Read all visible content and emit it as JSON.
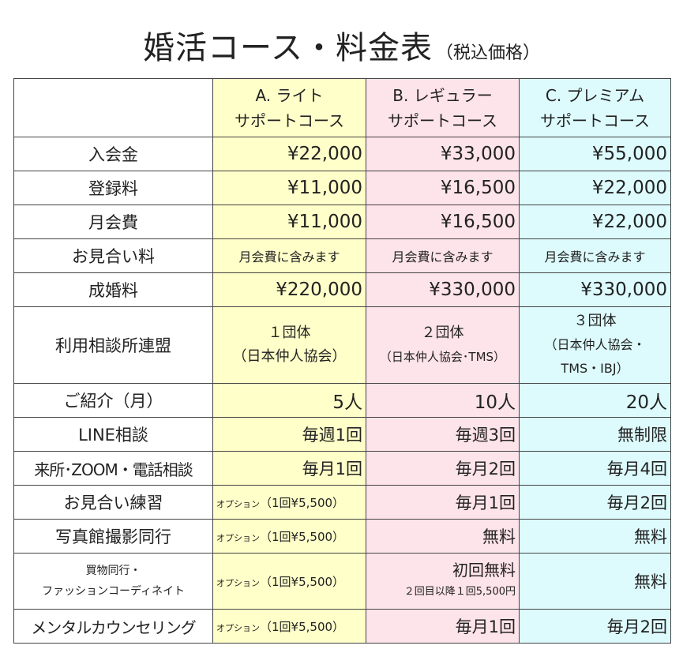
{
  "title": {
    "main": "婚活コース・料金表",
    "sub": "（税込価格）"
  },
  "courses": [
    {
      "line1": "A. ライト",
      "line2": "サポートコース"
    },
    {
      "line1": "B. レギュラー",
      "line2": "サポートコース"
    },
    {
      "line1": "C. プレミアム",
      "line2": "サポートコース"
    }
  ],
  "rows": {
    "admission": {
      "label": "入会金",
      "values": [
        "¥22,000",
        "¥33,000",
        "¥55,000"
      ]
    },
    "registration": {
      "label": "登録料",
      "values": [
        "¥11,000",
        "¥16,500",
        "¥22,000"
      ]
    },
    "monthly": {
      "label": "月会費",
      "values": [
        "¥11,000",
        "¥16,500",
        "¥22,000"
      ]
    },
    "meeting_fee": {
      "label": "お見合い料",
      "values": [
        "月会費に含みます",
        "月会費に含みます",
        "月会費に含みます"
      ]
    },
    "marriage_fee": {
      "label": "成婚料",
      "values": [
        "¥220,000",
        "¥330,000",
        "¥330,000"
      ]
    },
    "federation": {
      "label": "利用相談所連盟",
      "a": {
        "line1": "１団体",
        "line2": "（日本仲人協会）"
      },
      "b": {
        "line1": "２団体",
        "line2": "（日本仲人協会･TMS）"
      },
      "c": {
        "line1": "３団体",
        "line2": "（日本仲人協会・",
        "line3": "TMS・IBJ）"
      }
    },
    "introductions": {
      "label": "ご紹介（月）",
      "values": [
        "5人",
        "10人",
        "20人"
      ]
    },
    "line_consult": {
      "label": "LINE相談",
      "values": [
        "毎週1回",
        "毎週3回",
        "無制限"
      ]
    },
    "visit_consult": {
      "label": "来所･ZOOM・電話相談",
      "values": [
        "毎月1回",
        "毎月2回",
        "毎月4回"
      ]
    },
    "meeting_practice": {
      "label": "お見合い練習",
      "a_prefix": "オプション",
      "a_detail": "（1回¥5,500）",
      "b": "毎月1回",
      "c": "毎月2回"
    },
    "photo": {
      "label": "写真館撮影同行",
      "a_prefix": "オプション",
      "a_detail": "（1回¥5,500）",
      "b": "無料",
      "c": "無料"
    },
    "shopping": {
      "label_line1": "買物同行・",
      "label_line2": "ファッションコーディネイト",
      "a_prefix": "オプション",
      "a_detail": "（1回¥5,500）",
      "b_line1": "初回無料",
      "b_line2": "２回目以降１回5,500円",
      "c": "無料"
    },
    "counseling": {
      "label": "メンタルカウンセリング",
      "a_prefix": "オプション",
      "a_detail": "（1回¥5,500）",
      "b": "毎月1回",
      "c": "毎月2回"
    }
  },
  "colors": {
    "lite": "#ffffc9",
    "regular": "#fde3ea",
    "premium": "#ddfbfd",
    "border": "#444444"
  }
}
